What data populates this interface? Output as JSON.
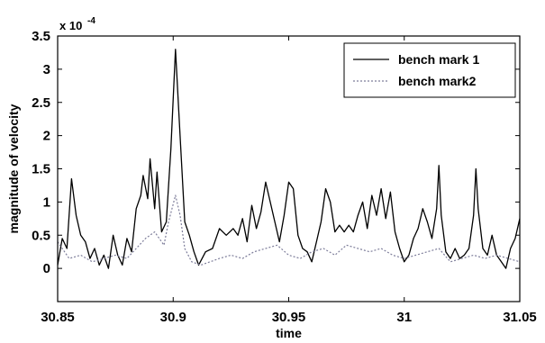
{
  "chart_data": {
    "type": "line",
    "title": "",
    "xlabel": "time",
    "ylabel": "magnitude of velocity",
    "scale_note_base": "x 10",
    "scale_note_exp": "-4",
    "xlim": [
      30.85,
      31.05
    ],
    "ylim": [
      -0.5,
      3.5
    ],
    "x_ticks": [
      30.85,
      30.9,
      30.95,
      31.0,
      31.05
    ],
    "x_tick_labels": [
      "30.85",
      "30.9",
      "30.95",
      "31",
      "31.05"
    ],
    "y_ticks": [
      0,
      0.5,
      1,
      1.5,
      2,
      2.5,
      3,
      3.5
    ],
    "y_tick_labels": [
      "0",
      "0.5",
      "1",
      "1.5",
      "2",
      "2.5",
      "3",
      "3.5"
    ],
    "grid": false,
    "legend_position": "top-right",
    "series": [
      {
        "name": "bench mark 1",
        "style": "solid",
        "color": "#000000",
        "points": [
          [
            30.85,
            0.05
          ],
          [
            30.852,
            0.45
          ],
          [
            30.854,
            0.3
          ],
          [
            30.856,
            1.35
          ],
          [
            30.858,
            0.8
          ],
          [
            30.86,
            0.5
          ],
          [
            30.862,
            0.4
          ],
          [
            30.864,
            0.15
          ],
          [
            30.866,
            0.3
          ],
          [
            30.868,
            0.05
          ],
          [
            30.87,
            0.2
          ],
          [
            30.872,
            0.0
          ],
          [
            30.874,
            0.5
          ],
          [
            30.876,
            0.2
          ],
          [
            30.878,
            0.05
          ],
          [
            30.88,
            0.45
          ],
          [
            30.882,
            0.25
          ],
          [
            30.884,
            0.9
          ],
          [
            30.886,
            1.1
          ],
          [
            30.887,
            1.4
          ],
          [
            30.889,
            1.05
          ],
          [
            30.89,
            1.65
          ],
          [
            30.892,
            0.9
          ],
          [
            30.893,
            1.45
          ],
          [
            30.895,
            0.55
          ],
          [
            30.897,
            0.7
          ],
          [
            30.899,
            1.8
          ],
          [
            30.901,
            3.3
          ],
          [
            30.903,
            2.0
          ],
          [
            30.905,
            0.7
          ],
          [
            30.907,
            0.5
          ],
          [
            30.909,
            0.25
          ],
          [
            30.911,
            0.05
          ],
          [
            30.914,
            0.25
          ],
          [
            30.917,
            0.3
          ],
          [
            30.92,
            0.6
          ],
          [
            30.923,
            0.5
          ],
          [
            30.926,
            0.6
          ],
          [
            30.928,
            0.5
          ],
          [
            30.93,
            0.75
          ],
          [
            30.932,
            0.4
          ],
          [
            30.934,
            0.95
          ],
          [
            30.936,
            0.6
          ],
          [
            30.938,
            0.85
          ],
          [
            30.94,
            1.3
          ],
          [
            30.942,
            1.0
          ],
          [
            30.944,
            0.7
          ],
          [
            30.946,
            0.4
          ],
          [
            30.948,
            0.8
          ],
          [
            30.95,
            1.3
          ],
          [
            30.952,
            1.2
          ],
          [
            30.954,
            0.5
          ],
          [
            30.956,
            0.3
          ],
          [
            30.958,
            0.25
          ],
          [
            30.96,
            0.1
          ],
          [
            30.962,
            0.4
          ],
          [
            30.964,
            0.7
          ],
          [
            30.966,
            1.2
          ],
          [
            30.968,
            1.0
          ],
          [
            30.97,
            0.55
          ],
          [
            30.972,
            0.65
          ],
          [
            30.974,
            0.55
          ],
          [
            30.976,
            0.65
          ],
          [
            30.978,
            0.55
          ],
          [
            30.98,
            0.8
          ],
          [
            30.982,
            1.0
          ],
          [
            30.984,
            0.6
          ],
          [
            30.986,
            1.1
          ],
          [
            30.988,
            0.8
          ],
          [
            30.99,
            1.2
          ],
          [
            30.992,
            0.75
          ],
          [
            30.994,
            1.15
          ],
          [
            30.996,
            0.55
          ],
          [
            30.998,
            0.3
          ],
          [
            31.0,
            0.1
          ],
          [
            31.002,
            0.2
          ],
          [
            31.004,
            0.45
          ],
          [
            31.006,
            0.6
          ],
          [
            31.008,
            0.9
          ],
          [
            31.01,
            0.7
          ],
          [
            31.012,
            0.45
          ],
          [
            31.014,
            0.9
          ],
          [
            31.015,
            1.55
          ],
          [
            31.016,
            0.8
          ],
          [
            31.018,
            0.25
          ],
          [
            31.02,
            0.15
          ],
          [
            31.022,
            0.3
          ],
          [
            31.024,
            0.15
          ],
          [
            31.026,
            0.2
          ],
          [
            31.028,
            0.3
          ],
          [
            31.03,
            0.8
          ],
          [
            31.031,
            1.5
          ],
          [
            31.032,
            0.9
          ],
          [
            31.034,
            0.3
          ],
          [
            31.036,
            0.2
          ],
          [
            31.038,
            0.5
          ],
          [
            31.04,
            0.2
          ],
          [
            31.042,
            0.1
          ],
          [
            31.044,
            0.0
          ],
          [
            31.046,
            0.3
          ],
          [
            31.048,
            0.45
          ],
          [
            31.05,
            0.75
          ]
        ]
      },
      {
        "name": "bench mark2",
        "style": "dotted",
        "color": "#7d7d9a",
        "points": [
          [
            30.85,
            0.4
          ],
          [
            30.855,
            0.15
          ],
          [
            30.86,
            0.2
          ],
          [
            30.865,
            0.1
          ],
          [
            30.87,
            0.15
          ],
          [
            30.875,
            0.2
          ],
          [
            30.88,
            0.15
          ],
          [
            30.884,
            0.3
          ],
          [
            30.888,
            0.45
          ],
          [
            30.892,
            0.55
          ],
          [
            30.896,
            0.35
          ],
          [
            30.898,
            0.7
          ],
          [
            30.901,
            1.1
          ],
          [
            30.903,
            0.8
          ],
          [
            30.905,
            0.3
          ],
          [
            30.908,
            0.1
          ],
          [
            30.912,
            0.05
          ],
          [
            30.916,
            0.1
          ],
          [
            30.92,
            0.15
          ],
          [
            30.925,
            0.2
          ],
          [
            30.93,
            0.15
          ],
          [
            30.935,
            0.25
          ],
          [
            30.94,
            0.3
          ],
          [
            30.945,
            0.35
          ],
          [
            30.95,
            0.2
          ],
          [
            30.955,
            0.15
          ],
          [
            30.96,
            0.25
          ],
          [
            30.965,
            0.3
          ],
          [
            30.97,
            0.2
          ],
          [
            30.975,
            0.35
          ],
          [
            30.98,
            0.3
          ],
          [
            30.985,
            0.25
          ],
          [
            30.99,
            0.3
          ],
          [
            30.995,
            0.2
          ],
          [
            31.0,
            0.15
          ],
          [
            31.005,
            0.2
          ],
          [
            31.01,
            0.25
          ],
          [
            31.015,
            0.3
          ],
          [
            31.02,
            0.1
          ],
          [
            31.025,
            0.15
          ],
          [
            31.03,
            0.2
          ],
          [
            31.035,
            0.15
          ],
          [
            31.04,
            0.2
          ],
          [
            31.045,
            0.15
          ],
          [
            31.05,
            0.1
          ]
        ]
      }
    ]
  }
}
